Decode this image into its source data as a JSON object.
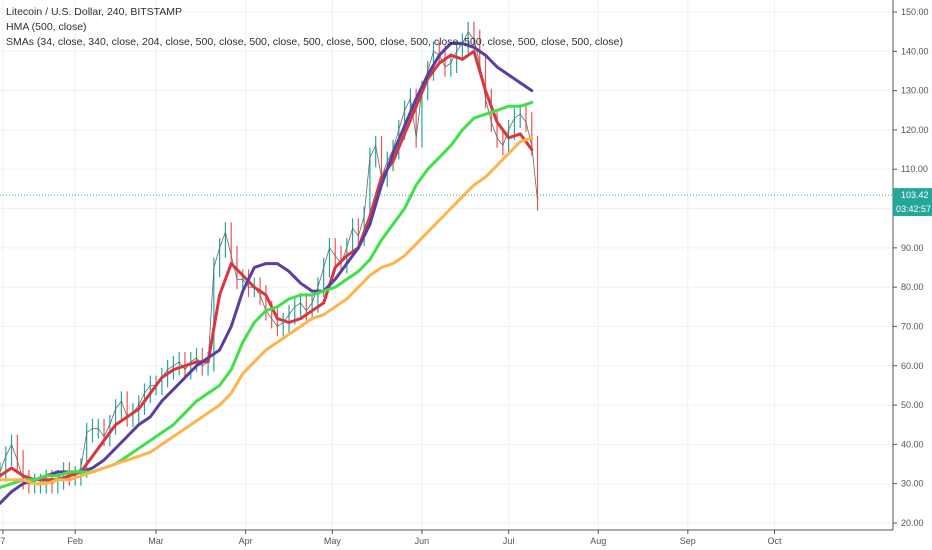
{
  "chart_data": {
    "type": "line",
    "title": "Litecoin / U.S. Dollar, 240, BITSTAMP",
    "indicators": [
      "HMA (500, close)",
      "SMAs (34, close, 340, close, 204, close, 500, close, 500, close, 500, close, 500, close, 500, close, 500, close, 500, close, 500, close)"
    ],
    "x_ticks": [
      {
        "label": "7",
        "day": 7
      },
      {
        "label": "Feb",
        "day": 32
      },
      {
        "label": "Mar",
        "day": 60
      },
      {
        "label": "Apr",
        "day": 91
      },
      {
        "label": "May",
        "day": 121
      },
      {
        "label": "Jun",
        "day": 152
      },
      {
        "label": "Jul",
        "day": 182
      },
      {
        "label": "Aug",
        "day": 213
      },
      {
        "label": "Sep",
        "day": 244
      },
      {
        "label": "Oct",
        "day": 274
      }
    ],
    "xlim": [
      6,
      315
    ],
    "ylim": [
      20,
      150
    ],
    "y_ticks": [
      "20.00",
      "30.00",
      "40.00",
      "50.00",
      "60.00",
      "70.00",
      "80.00",
      "90.00",
      "100.00",
      "110.00",
      "120.00",
      "130.00",
      "140.00",
      "150.00"
    ],
    "y_tick_values": [
      20,
      30,
      40,
      50,
      60,
      70,
      80,
      90,
      100,
      110,
      120,
      130,
      140,
      150
    ],
    "last_price": {
      "label": "103.42",
      "value": 103.42,
      "color": "#26a69a"
    },
    "countdown": {
      "label": "03:42:57"
    },
    "price_series": {
      "name": "",
      "color": "#26a69a",
      "x": [
        6,
        8,
        10,
        12,
        14,
        16,
        18,
        20,
        22,
        24,
        26,
        28,
        30,
        32,
        34,
        36,
        38,
        40,
        42,
        44,
        46,
        48,
        50,
        52,
        54,
        56,
        58,
        60,
        62,
        64,
        66,
        68,
        70,
        72,
        74,
        76,
        78,
        80,
        82,
        84,
        86,
        88,
        90,
        92,
        94,
        96,
        98,
        100,
        102,
        104,
        106,
        108,
        110,
        112,
        114,
        116,
        118,
        120,
        122,
        124,
        126,
        128,
        130,
        132,
        134,
        136,
        138,
        140,
        142,
        144,
        146,
        148,
        150,
        152,
        154,
        156,
        158,
        160,
        162,
        164,
        166,
        168,
        170,
        172,
        174,
        176,
        178,
        180,
        182,
        184,
        186,
        188,
        190,
        192
      ],
      "y": [
        33,
        37,
        40,
        36,
        31,
        30,
        30,
        30,
        31,
        30,
        31,
        33,
        32,
        32,
        34,
        43,
        44,
        44,
        42,
        45,
        49,
        51,
        47,
        48,
        50,
        53,
        55,
        55,
        57,
        59,
        60,
        61,
        59,
        61,
        62,
        60,
        61,
        85,
        90,
        94,
        88,
        82,
        82,
        80,
        80,
        78,
        74,
        72,
        70,
        71,
        73,
        75,
        76,
        74,
        76,
        80,
        85,
        90,
        88,
        86,
        90,
        95,
        93,
        98,
        113,
        116,
        108,
        112,
        115,
        120,
        125,
        128,
        118,
        130,
        135,
        140,
        139,
        136,
        137,
        140,
        142,
        145,
        143,
        137,
        128,
        122,
        118,
        116,
        120,
        123,
        124,
        122,
        116,
        102
      ]
    },
    "series": [
      {
        "name": "",
        "color": "#d9363e",
        "width": 3,
        "x": [
          6,
          10,
          14,
          18,
          22,
          26,
          30,
          34,
          38,
          42,
          46,
          50,
          54,
          58,
          62,
          66,
          70,
          74,
          78,
          82,
          86,
          90,
          94,
          98,
          102,
          106,
          110,
          114,
          118,
          122,
          126,
          130,
          134,
          138,
          142,
          146,
          150,
          154,
          158,
          162,
          166,
          170,
          174,
          178,
          182,
          186,
          190
        ],
        "y": [
          32,
          34,
          32,
          31,
          31,
          31,
          32,
          33,
          37,
          41,
          45,
          47,
          49,
          53,
          57,
          59,
          60,
          61,
          61,
          78,
          86,
          83,
          80,
          78,
          72,
          71,
          72,
          74,
          76,
          85,
          88,
          90,
          98,
          108,
          112,
          119,
          126,
          133,
          137,
          139,
          138,
          140,
          130,
          122,
          118,
          119,
          115
        ]
      },
      {
        "name": "",
        "color": "#5b3fa0",
        "width": 3,
        "x": [
          6,
          10,
          14,
          18,
          22,
          26,
          30,
          34,
          38,
          42,
          46,
          50,
          54,
          58,
          62,
          66,
          70,
          74,
          78,
          82,
          86,
          90,
          94,
          98,
          102,
          106,
          110,
          114,
          118,
          122,
          126,
          130,
          134,
          138,
          142,
          146,
          150,
          154,
          158,
          162,
          166,
          170,
          174,
          178,
          182,
          186,
          190
        ],
        "y": [
          25,
          28,
          30,
          31,
          32,
          33,
          33,
          33,
          34,
          36,
          39,
          42,
          45,
          47,
          51,
          54,
          57,
          60,
          62,
          64,
          70,
          79,
          85,
          86,
          86,
          84,
          81,
          79,
          79,
          82,
          86,
          90,
          96,
          106,
          114,
          121,
          128,
          134,
          139,
          142,
          142,
          141,
          139,
          136,
          134,
          132,
          130
        ]
      },
      {
        "name": "",
        "color": "#3fe04a",
        "width": 3,
        "x": [
          6,
          10,
          14,
          18,
          22,
          26,
          30,
          34,
          38,
          42,
          46,
          50,
          54,
          58,
          62,
          66,
          70,
          74,
          78,
          82,
          86,
          90,
          94,
          98,
          102,
          106,
          110,
          114,
          118,
          122,
          126,
          130,
          134,
          138,
          142,
          146,
          150,
          154,
          158,
          162,
          166,
          170,
          174,
          178,
          182,
          186,
          190
        ],
        "y": [
          29,
          30,
          31,
          31,
          32,
          32,
          33,
          33,
          33,
          34,
          35,
          37,
          39,
          41,
          43,
          45,
          48,
          51,
          53,
          55,
          59,
          66,
          71,
          74,
          75,
          77,
          78,
          78,
          79,
          80,
          82,
          84,
          87,
          92,
          96,
          100,
          106,
          110,
          113,
          116,
          120,
          123,
          124,
          125,
          126,
          126,
          127
        ]
      },
      {
        "name": "",
        "color": "#ffb34d",
        "width": 3,
        "x": [
          6,
          10,
          14,
          18,
          22,
          26,
          30,
          34,
          38,
          42,
          46,
          50,
          54,
          58,
          62,
          66,
          70,
          74,
          78,
          82,
          86,
          90,
          94,
          98,
          102,
          106,
          110,
          114,
          118,
          122,
          126,
          130,
          134,
          138,
          142,
          146,
          150,
          154,
          158,
          162,
          166,
          170,
          174,
          178,
          182,
          186,
          190
        ],
        "y": [
          31,
          31,
          31,
          30,
          30,
          31,
          31,
          32,
          33,
          34,
          35,
          36,
          37,
          38,
          40,
          42,
          44,
          46,
          48,
          50,
          53,
          58,
          61,
          64,
          66,
          68,
          70,
          72,
          73,
          75,
          77,
          80,
          83,
          85,
          86,
          88,
          91,
          94,
          97,
          100,
          103,
          106,
          108,
          111,
          114,
          117,
          118
        ]
      }
    ],
    "grid": true,
    "legend": "top-left"
  }
}
